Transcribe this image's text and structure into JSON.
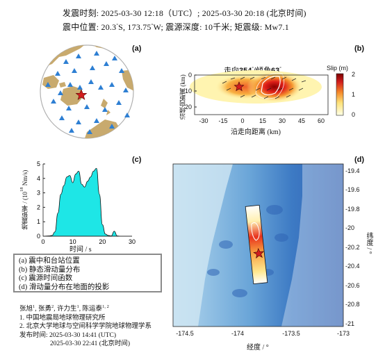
{
  "header": {
    "line1": "发震时刻: 2025-03-30 12:18（UTC）;   2025-03-30  20:18 (北京时间)",
    "line2_a": "震中位置: 20.3",
    "line2_b": "S,  173.75",
    "line2_c": "W;   震源深度: 10千米; 矩震级: Mw7.1",
    "deg": "°"
  },
  "panels": {
    "a": {
      "label": "(a)"
    },
    "b": {
      "label": "(b)",
      "title_a": "走向",
      "strike": "354",
      "title_b": "/倾角",
      "dip": "63",
      "deg": "°",
      "ylabel": "沿倾向距离 (km)",
      "xlabel": "沿走向距离 (km)",
      "colorbar_label": "Slip (m)"
    },
    "c": {
      "label": "(c)",
      "ylabel_a": "地震矩率 / (10",
      "ylabel_exp": "18",
      "ylabel_b": " Nm/s)",
      "xlabel": "时间 / s"
    },
    "d": {
      "label": "(d)",
      "xlabel": "经度 / °",
      "ylabel": "纬度 / °"
    }
  },
  "legend": {
    "items": [
      "(a) 震中和台站位置",
      "(b) 静态滑动量分布",
      "(c) 震源时间函数",
      "(d) 滑动量分布在地面的投影"
    ]
  },
  "authors": {
    "names": [
      "张旭",
      "张勇",
      "许力生",
      "陈运泰"
    ],
    "sups": [
      "1",
      "2",
      "1",
      "1, 2"
    ]
  },
  "affiliations": [
    "1. 中国地震局地球物理研究所",
    "2. 北京大学地球与空间科学学院地球物理学系"
  ],
  "release": {
    "label": "发布时间:",
    "utc": "2025-03-30  14:41 (UTC)",
    "bj": "2025-03-30  22:41 (北京时间)"
  },
  "chart_data": [
    {
      "type": "heatmap",
      "panel": "b",
      "title": "走向354°/倾角63°",
      "xlabel": "沿走向距离 (km)",
      "ylabel": "沿倾向距离 (km)",
      "xlim": [
        -37,
        65
      ],
      "ylim": [
        0,
        25
      ],
      "x_ticks": [
        -30,
        -15,
        0,
        15,
        30,
        45,
        60
      ],
      "y_ticks": [
        0,
        10,
        20
      ],
      "colorbar": {
        "label": "Slip (m)",
        "range": [
          0,
          2
        ],
        "ticks": [
          0,
          1,
          2
        ]
      },
      "hypocenter": {
        "x": 0,
        "y": 10
      },
      "peak_slip_region": {
        "x": 30,
        "y": 10
      }
    },
    {
      "type": "area",
      "panel": "c",
      "xlabel": "时间 / s",
      "ylabel": "地震矩率 / (10^18 Nm/s)",
      "xlim": [
        0,
        30
      ],
      "ylim": [
        0,
        5
      ],
      "x_ticks": [
        0,
        10,
        20,
        30
      ],
      "y_ticks": [
        0,
        1,
        2,
        3,
        4,
        5
      ],
      "x": [
        0,
        2,
        3,
        4,
        5,
        6,
        7,
        8,
        9,
        10,
        11,
        12,
        13,
        14,
        15,
        16,
        17,
        18,
        19,
        20,
        21,
        22,
        23,
        24,
        25,
        26,
        27,
        28,
        29,
        30
      ],
      "values": [
        0,
        0.02,
        0.05,
        0.3,
        1.6,
        2.9,
        3.5,
        4.1,
        4.2,
        3.7,
        4.3,
        4.5,
        3.6,
        3.4,
        3.8,
        4.1,
        4.5,
        4.7,
        2.9,
        0.8,
        0.15,
        0.05,
        0.02,
        0.35,
        0.02,
        0,
        0,
        0,
        0,
        0
      ]
    },
    {
      "type": "scatter",
      "panel": "d",
      "xlabel": "经度 / °",
      "ylabel": "纬度 / °",
      "xlim": [
        -174.6,
        -173.0
      ],
      "ylim": [
        -21.0,
        -19.3
      ],
      "x_ticks": [
        -174.5,
        -174,
        -173.5,
        -173
      ],
      "x_tick_labels": [
        "-174.5",
        "-174",
        "-173.5",
        "-173"
      ],
      "y_ticks": [
        -19.4,
        -19.6,
        -19.8,
        -20,
        -20.2,
        -20.4,
        -20.6,
        -20.8,
        -21
      ],
      "y_tick_labels": [
        "-19.4",
        "-19.6",
        "-19.8",
        "-20",
        "-20.2",
        "-20.4",
        "-20.6",
        "-20.8",
        "-21"
      ],
      "epicenter": {
        "lon": -173.75,
        "lat": -20.3
      }
    }
  ],
  "colors": {
    "land": "#c8aa6e",
    "sea": "#ffffff",
    "station": "#2e7fd3",
    "star": "#d21e1e",
    "sea_map": "#3f7fc4",
    "stf_fill": "#1ee6e6"
  }
}
